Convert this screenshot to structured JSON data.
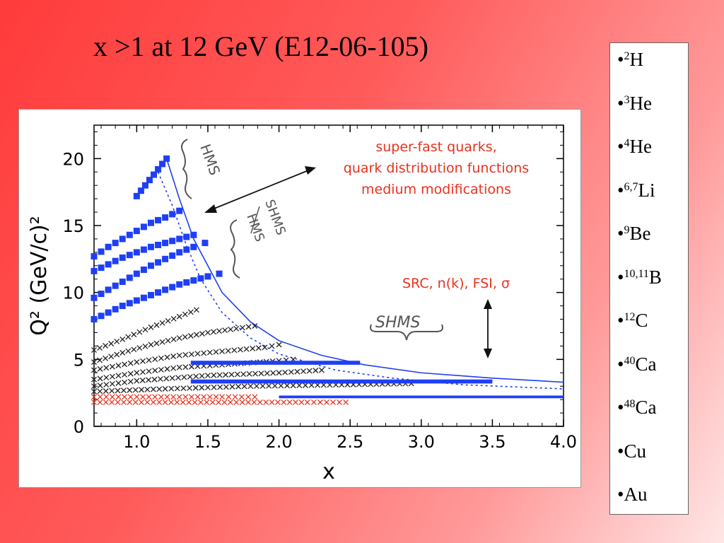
{
  "slide": {
    "title": "x >1 at 12 GeV (E12-06-105)"
  },
  "nuclei": [
    {
      "mass": "2",
      "symbol": "H"
    },
    {
      "mass": "3",
      "symbol": "He"
    },
    {
      "mass": "4",
      "symbol": "He"
    },
    {
      "mass": "6,7",
      "symbol": "Li"
    },
    {
      "mass": "9",
      "symbol": "Be"
    },
    {
      "mass": "10,11",
      "symbol": "B"
    },
    {
      "mass": "12",
      "symbol": "C"
    },
    {
      "mass": "40",
      "symbol": "Ca"
    },
    {
      "mass": "48",
      "symbol": "Ca"
    },
    {
      "mass": "",
      "symbol": "Cu"
    },
    {
      "mass": "",
      "symbol": "Au"
    }
  ],
  "colors": {
    "blue": "#1f3ff5",
    "black": "#222222",
    "red": "#e8321e"
  },
  "chart_data": {
    "type": "scatter",
    "xlabel": "x",
    "ylabel": "Q² (GeV/c)²",
    "xlim": [
      0.7,
      4.0
    ],
    "ylim": [
      0,
      22.5
    ],
    "xticks": [
      "1.0",
      "1.5",
      "2.0",
      "2.5",
      "3.0",
      "3.5",
      "4.0"
    ],
    "yticks": [
      "0",
      "5",
      "10",
      "15",
      "20"
    ],
    "series": [
      {
        "marker": "square",
        "color": "#1f3ff5",
        "points": [
          [
            1.0,
            17.2
          ],
          [
            1.03,
            17.6
          ],
          [
            1.06,
            18.0
          ],
          [
            1.09,
            18.4
          ],
          [
            1.12,
            18.8
          ],
          [
            1.15,
            19.2
          ],
          [
            1.18,
            19.6
          ],
          [
            1.21,
            20.0
          ]
        ]
      },
      {
        "marker": "square",
        "color": "#1f3ff5",
        "points": [
          [
            0.7,
            12.7
          ],
          [
            0.8,
            13.4
          ],
          [
            0.9,
            14.0
          ],
          [
            1.0,
            14.6
          ],
          [
            1.1,
            15.2
          ],
          [
            1.2,
            15.6
          ],
          [
            1.3,
            16.1
          ]
        ]
      },
      {
        "marker": "square",
        "color": "#1f3ff5",
        "points": [
          [
            0.7,
            11.6
          ],
          [
            0.8,
            12.1
          ],
          [
            0.9,
            12.6
          ],
          [
            1.0,
            13.0
          ],
          [
            1.1,
            13.4
          ],
          [
            1.2,
            13.7
          ],
          [
            1.3,
            14.0
          ],
          [
            1.4,
            14.3
          ]
        ]
      },
      {
        "marker": "square",
        "color": "#1f3ff5",
        "points": [
          [
            0.7,
            9.6
          ],
          [
            0.8,
            10.2
          ],
          [
            0.9,
            10.8
          ],
          [
            1.0,
            11.4
          ],
          [
            1.1,
            12.0
          ],
          [
            1.2,
            12.5
          ],
          [
            1.3,
            13.0
          ],
          [
            1.4,
            13.4
          ],
          [
            1.48,
            13.7
          ]
        ]
      },
      {
        "marker": "square",
        "color": "#1f3ff5",
        "points": [
          [
            0.7,
            8.0
          ],
          [
            0.8,
            8.5
          ],
          [
            0.9,
            9.0
          ],
          [
            1.0,
            9.4
          ],
          [
            1.1,
            9.8
          ],
          [
            1.2,
            10.2
          ],
          [
            1.3,
            10.6
          ],
          [
            1.4,
            10.9
          ],
          [
            1.5,
            11.2
          ],
          [
            1.58,
            11.4
          ]
        ]
      },
      {
        "marker": "cross",
        "color": "#222222",
        "points": [
          [
            0.7,
            5.7
          ],
          [
            0.9,
            6.5
          ],
          [
            1.1,
            7.4
          ],
          [
            1.3,
            8.2
          ],
          [
            1.42,
            8.7
          ]
        ]
      },
      {
        "marker": "cross",
        "color": "#222222",
        "points": [
          [
            0.7,
            4.8
          ],
          [
            0.9,
            5.5
          ],
          [
            1.1,
            6.1
          ],
          [
            1.3,
            6.6
          ],
          [
            1.5,
            7.0
          ],
          [
            1.7,
            7.3
          ],
          [
            1.83,
            7.5
          ]
        ]
      },
      {
        "marker": "cross",
        "color": "#222222",
        "points": [
          [
            0.7,
            4.2
          ],
          [
            1.0,
            4.8
          ],
          [
            1.3,
            5.3
          ],
          [
            1.6,
            5.6
          ],
          [
            1.9,
            5.9
          ],
          [
            2.0,
            6.1
          ]
        ]
      },
      {
        "marker": "cross",
        "color": "#222222",
        "points": [
          [
            0.7,
            3.5
          ],
          [
            1.0,
            4.0
          ],
          [
            1.3,
            4.4
          ],
          [
            1.6,
            4.6
          ],
          [
            2.0,
            4.9
          ],
          [
            2.1,
            5.0
          ]
        ]
      },
      {
        "marker": "cross",
        "color": "#222222",
        "points": [
          [
            0.7,
            3.0
          ],
          [
            1.0,
            3.4
          ],
          [
            1.5,
            3.8
          ],
          [
            2.0,
            4.0
          ],
          [
            2.3,
            4.2
          ]
        ]
      },
      {
        "marker": "cross",
        "color": "#222222",
        "points": [
          [
            0.7,
            2.6
          ],
          [
            1.2,
            2.8
          ],
          [
            1.8,
            3.0
          ],
          [
            2.4,
            3.1
          ],
          [
            2.93,
            3.2
          ]
        ]
      },
      {
        "marker": "cross",
        "color": "#e8321e",
        "points": [
          [
            0.7,
            2.2
          ],
          [
            1.0,
            2.2
          ],
          [
            1.3,
            2.2
          ],
          [
            1.6,
            2.2
          ],
          [
            1.83,
            2.2
          ]
        ]
      },
      {
        "marker": "cross",
        "color": "#e8321e",
        "points": [
          [
            0.7,
            1.8
          ],
          [
            1.2,
            1.8
          ],
          [
            1.7,
            1.8
          ],
          [
            2.2,
            1.8
          ],
          [
            2.47,
            1.8
          ]
        ]
      },
      {
        "marker": "bar",
        "color": "#1f3ff5",
        "points": [
          [
            1.38,
            4.6
          ],
          [
            2.57,
            4.9
          ]
        ]
      },
      {
        "marker": "bar",
        "color": "#1f3ff5",
        "points": [
          [
            1.38,
            3.2
          ],
          [
            3.5,
            3.5
          ]
        ]
      },
      {
        "marker": "bar",
        "color": "#1f3ff5",
        "points": [
          [
            2.0,
            2.1
          ],
          [
            4.0,
            2.3
          ]
        ]
      }
    ],
    "curves": [
      {
        "style": "solid",
        "color": "#1f3ff5",
        "points": [
          [
            1.0,
            17.2
          ],
          [
            1.21,
            20.0
          ],
          [
            1.3,
            17.0
          ],
          [
            1.4,
            14.0
          ],
          [
            1.5,
            12.0
          ],
          [
            1.6,
            10.0
          ],
          [
            1.8,
            7.8
          ],
          [
            2.0,
            6.4
          ],
          [
            2.3,
            5.3
          ],
          [
            2.6,
            4.6
          ],
          [
            3.0,
            4.0
          ],
          [
            3.5,
            3.6
          ],
          [
            4.0,
            3.3
          ]
        ]
      },
      {
        "style": "dotted",
        "color": "#1f3ff5",
        "points": [
          [
            1.15,
            19.0
          ],
          [
            1.25,
            16.5
          ],
          [
            1.35,
            13.5
          ],
          [
            1.45,
            11.0
          ],
          [
            1.6,
            8.5
          ],
          [
            1.8,
            6.6
          ],
          [
            2.0,
            5.4
          ],
          [
            2.4,
            4.2
          ],
          [
            2.8,
            3.6
          ],
          [
            3.3,
            3.1
          ],
          [
            4.0,
            2.8
          ]
        ]
      }
    ],
    "annotations": [
      {
        "text": "super-fast quarks,",
        "color": "#e8321e"
      },
      {
        "text": "quark distribution functions",
        "color": "#e8321e"
      },
      {
        "text": "medium modifications",
        "color": "#e8321e"
      },
      {
        "text": "SRC, n(k), FSI, σ",
        "color": "#e8321e"
      },
      {
        "text": "HMS",
        "color": "#555555"
      },
      {
        "text": "SHMS",
        "color": "#555555"
      },
      {
        "text": "HMS",
        "color": "#555555"
      },
      {
        "text": "SHMS",
        "color": "#555555"
      }
    ]
  }
}
